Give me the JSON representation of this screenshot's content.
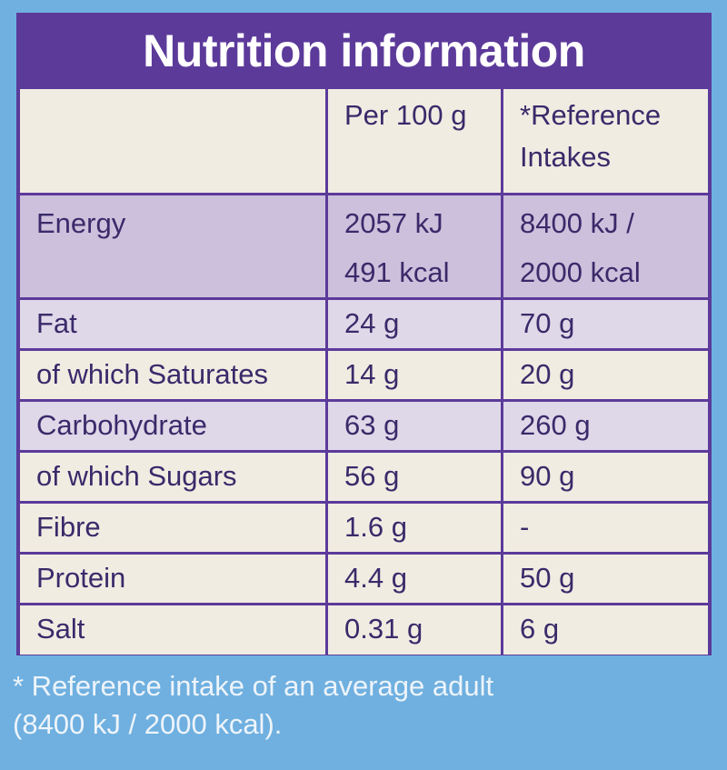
{
  "title": "Nutrition information",
  "columns": {
    "per100": "Per 100 g",
    "reference_line1": "*Reference",
    "reference_line2": "Intakes"
  },
  "rows": [
    {
      "nutrient": "Energy",
      "per100_line1": "2057 kJ",
      "per100_line2": "491 kcal",
      "reference_line1": "8400 kJ /",
      "reference_line2": "2000 kcal"
    },
    {
      "nutrient": "Fat",
      "per100": "24 g",
      "reference": "70 g"
    },
    {
      "nutrient": "of which Saturates",
      "per100": "14 g",
      "reference": "20 g"
    },
    {
      "nutrient": "Carbohydrate",
      "per100": "63 g",
      "reference": "260 g"
    },
    {
      "nutrient": "of which Sugars",
      "per100": "56 g",
      "reference": "90 g"
    },
    {
      "nutrient": "Fibre",
      "per100": "1.6 g",
      "reference": "-"
    },
    {
      "nutrient": "Protein",
      "per100": "4.4 g",
      "reference": "50 g"
    },
    {
      "nutrient": "Salt",
      "per100": "0.31 g",
      "reference": "6 g"
    }
  ],
  "footnote": {
    "line1": "* Reference intake of an average adult",
    "line2": "(8400 kJ / 2000 kcal)."
  },
  "colors": {
    "background": "#6fb0e0",
    "panel": "#5c3a9a",
    "cell": "#f0ece2",
    "energy_row": "#ccc0dc",
    "text": "#3a2a6a"
  }
}
